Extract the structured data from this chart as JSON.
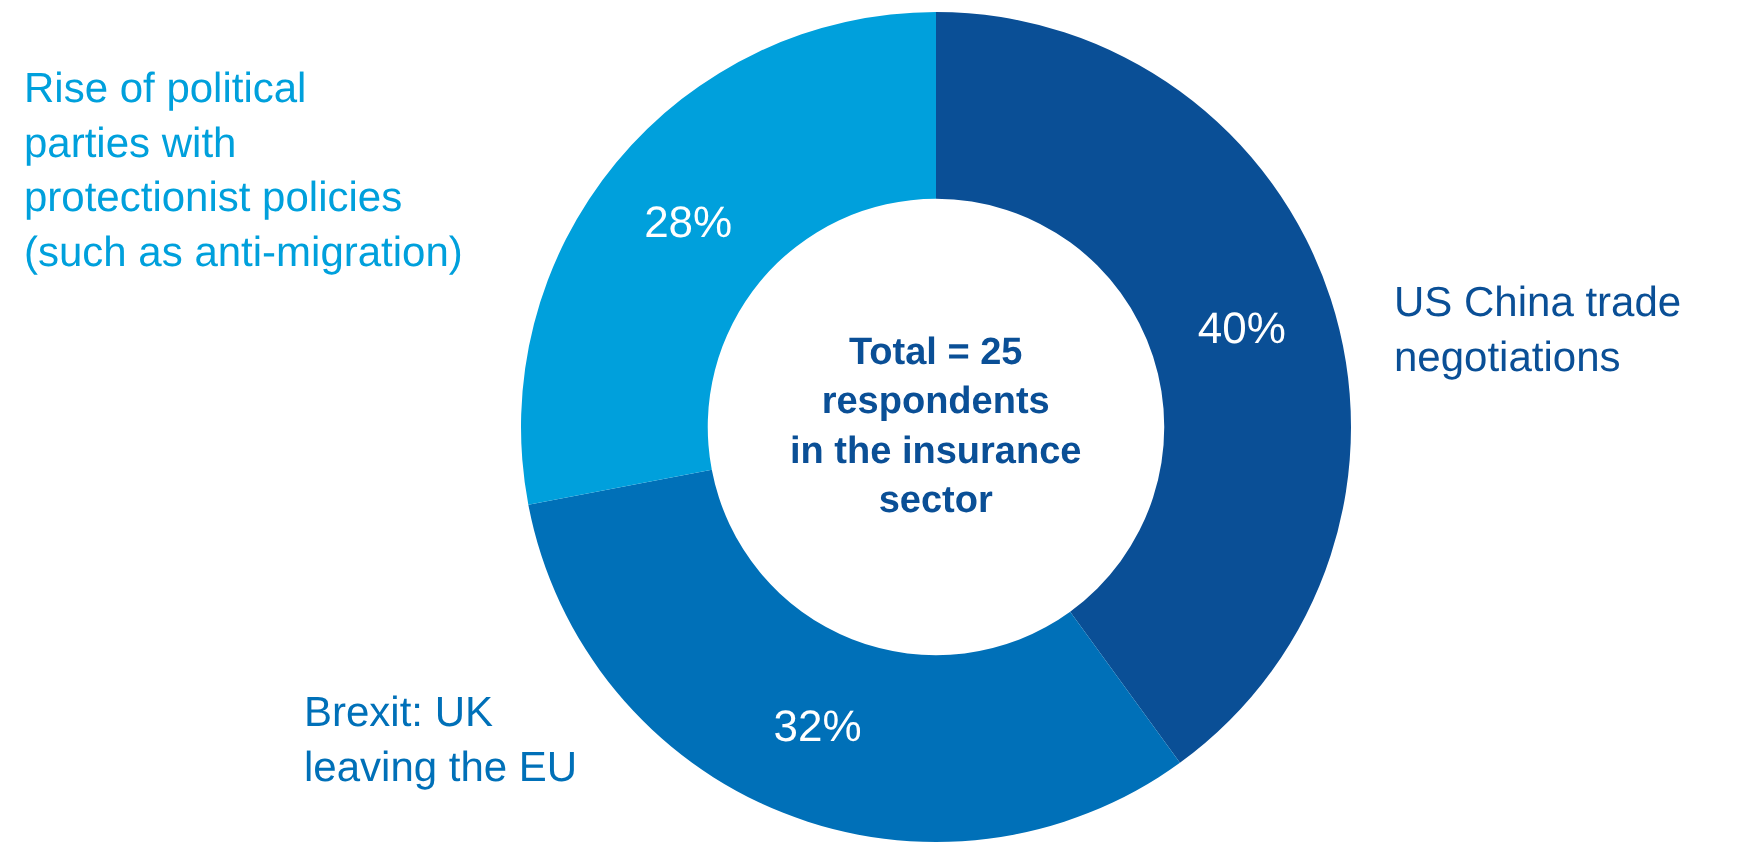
{
  "chart_data": {
    "type": "donut",
    "categories": [
      "US China trade negotiations",
      "Brexit: UK leaving the EU",
      "Rise of political parties with protectionist policies (such as anti-migration)"
    ],
    "values": [
      40,
      32,
      28
    ],
    "value_labels": [
      "40%",
      "32%",
      "28%"
    ],
    "colors": [
      "#0a4f96",
      "#0070b8",
      "#00a0dc"
    ],
    "annotations": [
      "Total = 25\nrespondents\nin the insurance\nsector"
    ],
    "legend": false
  }
}
